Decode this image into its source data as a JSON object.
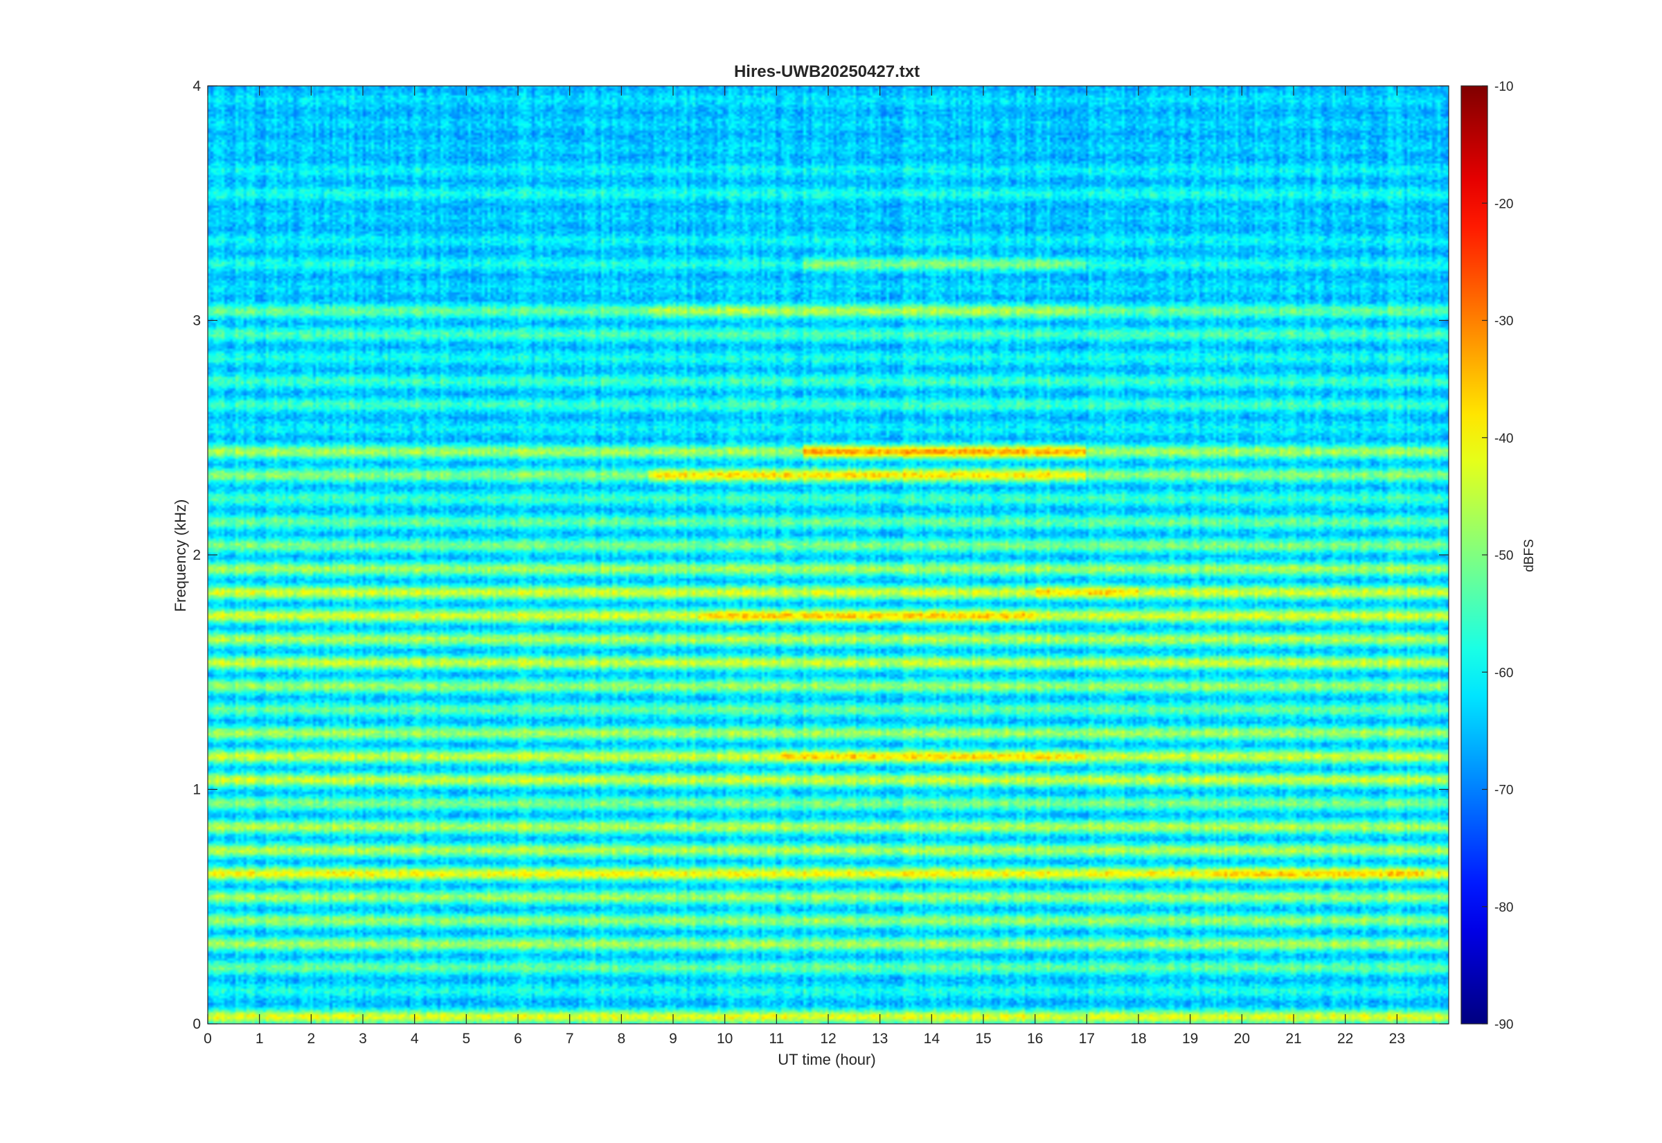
{
  "chart_data": {
    "type": "heatmap",
    "title": "Hires-UWB20250427.txt",
    "xlabel": "UT time (hour)",
    "ylabel": "Frequency (kHz)",
    "xlim": [
      0,
      24
    ],
    "ylim": [
      0,
      4
    ],
    "x_ticks": [
      "0",
      "1",
      "2",
      "3",
      "4",
      "5",
      "6",
      "7",
      "8",
      "9",
      "10",
      "11",
      "12",
      "13",
      "14",
      "15",
      "16",
      "17",
      "18",
      "19",
      "20",
      "21",
      "22",
      "23"
    ],
    "y_ticks": [
      "0",
      "1",
      "2",
      "3",
      "4"
    ],
    "colorbar": {
      "label": "dBFS",
      "range": [
        -90,
        -10
      ],
      "ticks": [
        "-90",
        "-80",
        "-70",
        "-60",
        "-50",
        "-40",
        "-30",
        "-20",
        "-10"
      ],
      "colormap": "jet"
    },
    "grid": false,
    "bands": [
      {
        "freq_khz": 0.03,
        "level_dbfs": -42
      },
      {
        "freq_khz": 0.14,
        "level_dbfs": -58
      },
      {
        "freq_khz": 0.24,
        "level_dbfs": -52
      },
      {
        "freq_khz": 0.34,
        "level_dbfs": -47
      },
      {
        "freq_khz": 0.44,
        "level_dbfs": -48
      },
      {
        "freq_khz": 0.54,
        "level_dbfs": -47
      },
      {
        "freq_khz": 0.64,
        "level_dbfs": -40
      },
      {
        "freq_khz": 0.74,
        "level_dbfs": -46
      },
      {
        "freq_khz": 0.84,
        "level_dbfs": -46
      },
      {
        "freq_khz": 0.94,
        "level_dbfs": -50
      },
      {
        "freq_khz": 1.04,
        "level_dbfs": -44
      },
      {
        "freq_khz": 1.14,
        "level_dbfs": -44
      },
      {
        "freq_khz": 1.24,
        "level_dbfs": -47
      },
      {
        "freq_khz": 1.34,
        "level_dbfs": -52
      },
      {
        "freq_khz": 1.44,
        "level_dbfs": -48
      },
      {
        "freq_khz": 1.54,
        "level_dbfs": -44
      },
      {
        "freq_khz": 1.64,
        "level_dbfs": -46
      },
      {
        "freq_khz": 1.74,
        "level_dbfs": -43
      },
      {
        "freq_khz": 1.84,
        "level_dbfs": -43
      },
      {
        "freq_khz": 1.94,
        "level_dbfs": -47
      },
      {
        "freq_khz": 2.04,
        "level_dbfs": -50
      },
      {
        "freq_khz": 2.14,
        "level_dbfs": -52
      },
      {
        "freq_khz": 2.24,
        "level_dbfs": -55
      },
      {
        "freq_khz": 2.34,
        "level_dbfs": -49
      },
      {
        "freq_khz": 2.44,
        "level_dbfs": -47
      },
      {
        "freq_khz": 2.54,
        "level_dbfs": -60
      },
      {
        "freq_khz": 2.64,
        "level_dbfs": -55
      },
      {
        "freq_khz": 2.74,
        "level_dbfs": -55
      },
      {
        "freq_khz": 2.84,
        "level_dbfs": -58
      },
      {
        "freq_khz": 2.94,
        "level_dbfs": -54
      },
      {
        "freq_khz": 3.04,
        "level_dbfs": -52
      },
      {
        "freq_khz": 3.14,
        "level_dbfs": -62
      },
      {
        "freq_khz": 3.24,
        "level_dbfs": -58
      },
      {
        "freq_khz": 3.34,
        "level_dbfs": -60
      },
      {
        "freq_khz": 3.44,
        "level_dbfs": -63
      },
      {
        "freq_khz": 3.54,
        "level_dbfs": -58
      },
      {
        "freq_khz": 3.64,
        "level_dbfs": -60
      },
      {
        "freq_khz": 3.74,
        "level_dbfs": -63
      },
      {
        "freq_khz": 3.84,
        "level_dbfs": -63
      },
      {
        "freq_khz": 3.94,
        "level_dbfs": -62
      }
    ],
    "enhancements": [
      {
        "t_start_h": 11.5,
        "t_end_h": 17.0,
        "freq_khz": 2.44,
        "level_dbfs": -33
      },
      {
        "t_start_h": 8.5,
        "t_end_h": 17.0,
        "freq_khz": 2.34,
        "level_dbfs": -38
      },
      {
        "t_start_h": 11.0,
        "t_end_h": 17.0,
        "freq_khz": 1.14,
        "level_dbfs": -37
      },
      {
        "t_start_h": 9.5,
        "t_end_h": 16.0,
        "freq_khz": 1.74,
        "level_dbfs": -36
      },
      {
        "t_start_h": 16.0,
        "t_end_h": 18.0,
        "freq_khz": 1.84,
        "level_dbfs": -37
      },
      {
        "t_start_h": 19.5,
        "t_end_h": 23.5,
        "freq_khz": 0.64,
        "level_dbfs": -36
      },
      {
        "t_start_h": 8.5,
        "t_end_h": 17.0,
        "freq_khz": 3.04,
        "level_dbfs": -46
      },
      {
        "t_start_h": 11.5,
        "t_end_h": 17.0,
        "freq_khz": 3.24,
        "level_dbfs": -50
      }
    ]
  }
}
